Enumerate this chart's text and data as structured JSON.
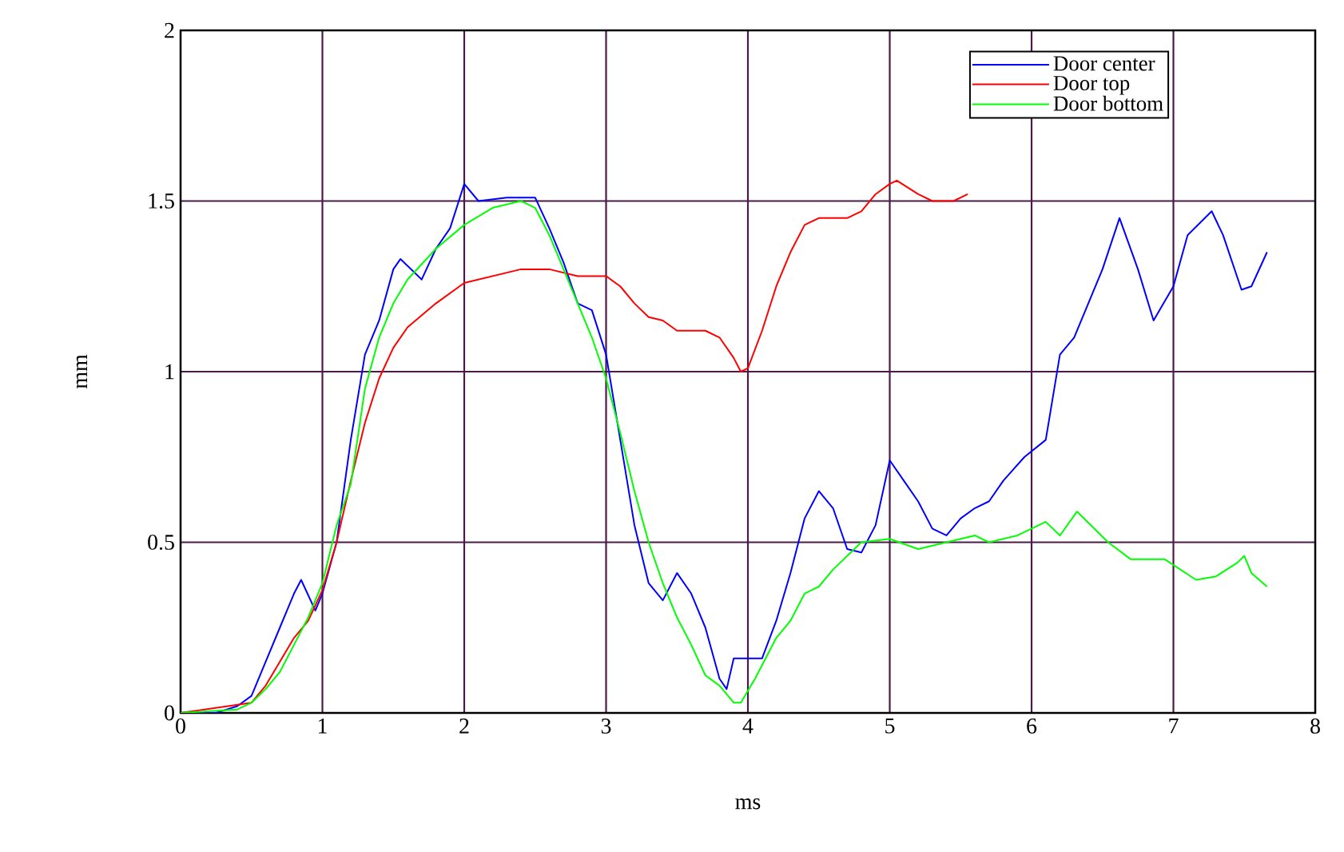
{
  "chart_data": {
    "type": "line",
    "xlabel": "ms",
    "ylabel": "mm",
    "xlim": [
      0,
      8
    ],
    "ylim": [
      0,
      2
    ],
    "xticks": [
      0,
      1,
      2,
      3,
      4,
      5,
      6,
      7,
      8
    ],
    "yticks": [
      0,
      0.5,
      1,
      1.5,
      2
    ],
    "grid": true,
    "legend": "top right",
    "line_style": "solid",
    "marker": "none",
    "series": [
      {
        "name": "Door center",
        "color": "#0000ff",
        "x": [
          0,
          0.25,
          0.4,
          0.5,
          0.6,
          0.7,
          0.8,
          0.85,
          0.95,
          1.0,
          1.1,
          1.2,
          1.3,
          1.4,
          1.5,
          1.55,
          1.7,
          1.8,
          1.9,
          2.0,
          2.1,
          2.3,
          2.5,
          2.6,
          2.7,
          2.8,
          2.9,
          3.0,
          3.1,
          3.2,
          3.3,
          3.4,
          3.5,
          3.6,
          3.7,
          3.8,
          3.85,
          3.9,
          4.0,
          4.1,
          4.2,
          4.3,
          4.4,
          4.5,
          4.6,
          4.7,
          4.8,
          4.9,
          5.0,
          5.1,
          5.2,
          5.3,
          5.4,
          5.5,
          5.6,
          5.7,
          5.8,
          5.95,
          6.1,
          6.2,
          6.3,
          6.4,
          6.5,
          6.62,
          6.75,
          6.86,
          7.0,
          7.1,
          7.27,
          7.35,
          7.48,
          7.55,
          7.66
        ],
        "values": [
          0,
          0,
          0.02,
          0.05,
          0.15,
          0.25,
          0.35,
          0.39,
          0.3,
          0.35,
          0.5,
          0.8,
          1.05,
          1.15,
          1.3,
          1.33,
          1.27,
          1.36,
          1.42,
          1.55,
          1.5,
          1.51,
          1.51,
          1.42,
          1.32,
          1.2,
          1.18,
          1.05,
          0.8,
          0.55,
          0.38,
          0.33,
          0.41,
          0.35,
          0.25,
          0.1,
          0.07,
          0.16,
          0.16,
          0.16,
          0.27,
          0.41,
          0.57,
          0.65,
          0.6,
          0.48,
          0.47,
          0.55,
          0.74,
          0.68,
          0.62,
          0.54,
          0.52,
          0.57,
          0.6,
          0.62,
          0.68,
          0.75,
          0.8,
          1.05,
          1.1,
          1.2,
          1.3,
          1.45,
          1.3,
          1.15,
          1.25,
          1.4,
          1.47,
          1.4,
          1.24,
          1.25,
          1.35
        ]
      },
      {
        "name": "Door top",
        "color": "#ff0000",
        "x": [
          0,
          0.5,
          0.6,
          0.7,
          0.8,
          0.9,
          1.0,
          1.1,
          1.2,
          1.3,
          1.4,
          1.5,
          1.6,
          1.8,
          2.0,
          2.2,
          2.4,
          2.6,
          2.8,
          3.0,
          3.1,
          3.2,
          3.3,
          3.4,
          3.5,
          3.7,
          3.8,
          3.9,
          3.95,
          4.0,
          4.1,
          4.2,
          4.3,
          4.4,
          4.5,
          4.7,
          4.8,
          4.9,
          5.0,
          5.05,
          5.2,
          5.3,
          5.45,
          5.55
        ],
        "values": [
          0,
          0.03,
          0.08,
          0.15,
          0.22,
          0.27,
          0.36,
          0.5,
          0.68,
          0.85,
          0.98,
          1.07,
          1.13,
          1.2,
          1.26,
          1.28,
          1.3,
          1.3,
          1.28,
          1.28,
          1.25,
          1.2,
          1.16,
          1.15,
          1.12,
          1.12,
          1.1,
          1.04,
          1.0,
          1.01,
          1.12,
          1.25,
          1.35,
          1.43,
          1.45,
          1.45,
          1.47,
          1.52,
          1.55,
          1.56,
          1.52,
          1.5,
          1.5,
          1.52
        ]
      },
      {
        "name": "Door bottom",
        "color": "#00ff00",
        "x": [
          0,
          0.4,
          0.5,
          0.6,
          0.7,
          0.8,
          0.9,
          1.0,
          1.1,
          1.2,
          1.3,
          1.4,
          1.5,
          1.6,
          1.8,
          2.0,
          2.2,
          2.4,
          2.5,
          2.6,
          2.7,
          2.8,
          2.9,
          3.0,
          3.1,
          3.2,
          3.3,
          3.4,
          3.5,
          3.6,
          3.7,
          3.8,
          3.9,
          3.95,
          4.05,
          4.2,
          4.3,
          4.4,
          4.5,
          4.6,
          4.8,
          5.0,
          5.2,
          5.4,
          5.6,
          5.7,
          5.9,
          6.1,
          6.2,
          6.32,
          6.54,
          6.7,
          6.94,
          7.16,
          7.3,
          7.45,
          7.5,
          7.55,
          7.66
        ],
        "values": [
          0,
          0.01,
          0.03,
          0.07,
          0.12,
          0.2,
          0.28,
          0.38,
          0.55,
          0.67,
          0.95,
          1.1,
          1.2,
          1.27,
          1.36,
          1.43,
          1.48,
          1.5,
          1.48,
          1.4,
          1.3,
          1.2,
          1.1,
          0.98,
          0.82,
          0.65,
          0.5,
          0.38,
          0.28,
          0.2,
          0.11,
          0.08,
          0.03,
          0.03,
          0.1,
          0.22,
          0.27,
          0.35,
          0.37,
          0.42,
          0.5,
          0.51,
          0.48,
          0.5,
          0.52,
          0.5,
          0.52,
          0.56,
          0.52,
          0.59,
          0.5,
          0.45,
          0.45,
          0.39,
          0.4,
          0.44,
          0.46,
          0.41,
          0.37
        ]
      }
    ]
  }
}
